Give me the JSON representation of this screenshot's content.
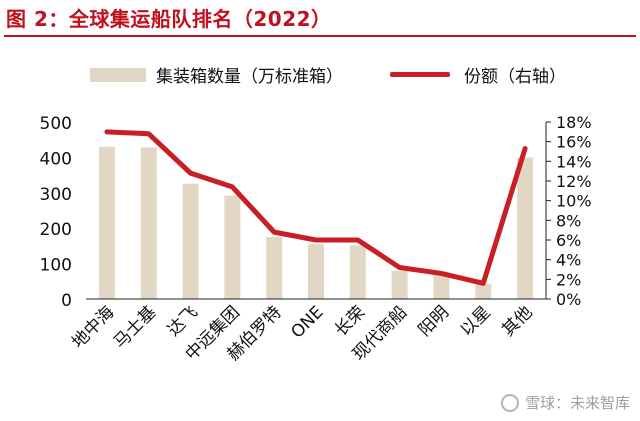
{
  "header": {
    "title": "图 2：全球集运船队排名（2022）"
  },
  "legend": {
    "bar_label": "集装箱数量（万标准箱）",
    "line_label": "份额（右轴）"
  },
  "watermark": {
    "text": "雪球：未来智库"
  },
  "colors": {
    "title": "#c0111f",
    "bar": "#e2d6c4",
    "line": "#c81e24"
  },
  "chart_data": {
    "type": "bar",
    "categories": [
      "地中海",
      "马士基",
      "达飞",
      "中远集团",
      "赫伯罗特",
      "ONE",
      "长荣",
      "现代商船",
      "阳明",
      "以星",
      "其他"
    ],
    "series": [
      {
        "name": "集装箱数量（万标准箱）",
        "type": "bar",
        "axis": "left",
        "values": [
          430,
          428,
          326,
          292,
          175,
          155,
          152,
          80,
          69,
          42,
          400
        ]
      },
      {
        "name": "份额（右轴）",
        "type": "line",
        "axis": "right",
        "values": [
          17.0,
          16.8,
          12.8,
          11.4,
          6.8,
          6.0,
          6.0,
          3.2,
          2.6,
          1.6,
          15.3
        ]
      }
    ],
    "y_left": {
      "ylim": [
        0,
        500
      ],
      "ticks": [
        "0",
        "100",
        "200",
        "300",
        "400",
        "500"
      ]
    },
    "y_right": {
      "ylim": [
        0,
        18
      ],
      "ticks": [
        "0%",
        "2%",
        "4%",
        "6%",
        "8%",
        "10%",
        "12%",
        "14%",
        "16%",
        "18%"
      ]
    },
    "grid": false,
    "legend_position": "top"
  }
}
